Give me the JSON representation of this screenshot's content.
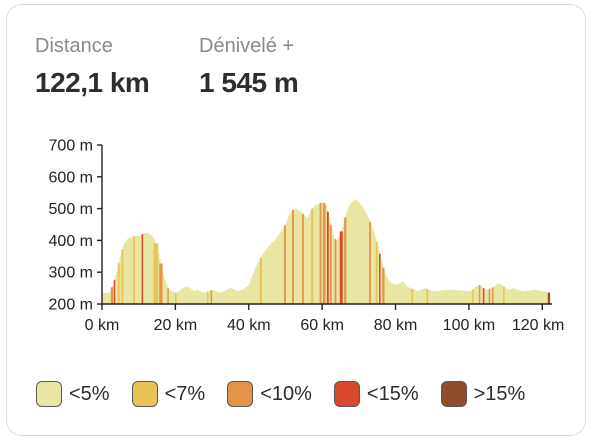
{
  "stats": {
    "distance_label": "Distance",
    "distance_value": "122,1 km",
    "elevation_label": "Dénivelé +",
    "elevation_value": "1 545 m"
  },
  "chart_data": {
    "type": "area",
    "title": "",
    "xlabel": "",
    "ylabel": "",
    "xlim": [
      0,
      122.1
    ],
    "ylim": [
      200,
      700
    ],
    "x_ticks": [
      0,
      20,
      40,
      60,
      80,
      100,
      120
    ],
    "x_tick_labels": [
      "0 km",
      "20 km",
      "40 km",
      "60 km",
      "80 km",
      "100 km",
      "120 km"
    ],
    "y_ticks": [
      200,
      300,
      400,
      500,
      600,
      700
    ],
    "y_tick_labels": [
      "200 m",
      "300 m",
      "400 m",
      "500 m",
      "600 m",
      "700 m"
    ],
    "grid": false,
    "x": [
      0,
      2,
      3,
      4,
      5,
      6,
      7,
      8,
      9,
      10,
      11,
      12,
      13,
      14,
      15,
      16,
      17,
      18,
      19,
      20,
      21,
      22,
      23,
      24,
      25,
      26,
      27,
      28,
      29,
      30,
      31,
      32,
      33,
      34,
      35,
      36,
      37,
      38,
      39,
      40,
      41,
      42,
      43,
      44,
      45,
      46,
      47,
      48,
      49,
      50,
      51,
      52,
      53,
      54,
      55,
      56,
      57,
      58,
      59,
      60,
      61,
      62,
      63,
      64,
      65,
      66,
      67,
      68,
      69,
      70,
      71,
      72,
      73,
      74,
      75,
      76,
      77,
      78,
      79,
      80,
      81,
      82,
      83,
      84,
      85,
      86,
      87,
      88,
      89,
      90,
      95,
      100,
      101,
      102,
      103,
      104,
      105,
      106,
      107,
      108,
      109,
      110,
      111,
      112,
      113,
      115,
      118,
      120,
      122.1
    ],
    "y": [
      235,
      235,
      260,
      300,
      350,
      390,
      405,
      410,
      415,
      412,
      420,
      425,
      420,
      410,
      380,
      330,
      280,
      250,
      240,
      235,
      240,
      250,
      255,
      250,
      240,
      245,
      238,
      235,
      240,
      245,
      240,
      235,
      238,
      245,
      250,
      245,
      240,
      245,
      250,
      260,
      290,
      320,
      340,
      360,
      375,
      390,
      400,
      415,
      430,
      450,
      480,
      495,
      500,
      490,
      480,
      470,
      495,
      510,
      515,
      520,
      515,
      470,
      410,
      400,
      420,
      460,
      500,
      520,
      530,
      520,
      505,
      485,
      460,
      430,
      390,
      345,
      300,
      275,
      265,
      260,
      265,
      270,
      255,
      250,
      245,
      240,
      245,
      250,
      245,
      240,
      245,
      240,
      245,
      255,
      260,
      250,
      245,
      250,
      255,
      265,
      260,
      250,
      245,
      250,
      245,
      240,
      245,
      240,
      235
    ],
    "gradient_categories": [
      "<5%",
      "<7%",
      "<10%",
      "<15%",
      ">15%"
    ],
    "series_colors": {
      "<5%": "#e9e6a4",
      "<7%": "#e8c357",
      "<10%": "#e4934a",
      "<15%": "#d9472f",
      ">15%": "#8f4c2a"
    },
    "steep_segments": [
      {
        "from": 2.4,
        "to": 3.0,
        "category": "<10%"
      },
      {
        "from": 3.2,
        "to": 3.6,
        "category": "<15%"
      },
      {
        "from": 4.3,
        "to": 4.8,
        "category": "<7%"
      },
      {
        "from": 5.3,
        "to": 5.8,
        "category": "<7%"
      },
      {
        "from": 8.5,
        "to": 9.0,
        "category": "<7%"
      },
      {
        "from": 10.8,
        "to": 11.2,
        "category": "<15%"
      },
      {
        "from": 14.0,
        "to": 15.3,
        "category": "<7%"
      },
      {
        "from": 15.6,
        "to": 16.5,
        "category": "<10%"
      },
      {
        "from": 17.8,
        "to": 18.2,
        "category": "<10%"
      },
      {
        "from": 19.9,
        "to": 20.3,
        "category": "<7%"
      },
      {
        "from": 28.6,
        "to": 29.0,
        "category": "<7%"
      },
      {
        "from": 29.6,
        "to": 29.9,
        "category": "<10%"
      },
      {
        "from": 43.0,
        "to": 43.6,
        "category": "<7%"
      },
      {
        "from": 49.6,
        "to": 50.1,
        "category": "<10%"
      },
      {
        "from": 51.8,
        "to": 52.3,
        "category": "<10%"
      },
      {
        "from": 54.5,
        "to": 55.0,
        "category": "<10%"
      },
      {
        "from": 57.0,
        "to": 57.6,
        "category": "<7%"
      },
      {
        "from": 59.3,
        "to": 59.8,
        "category": "<10%"
      },
      {
        "from": 60.2,
        "to": 60.9,
        "category": "<10%"
      },
      {
        "from": 61.3,
        "to": 61.8,
        "category": "<15%"
      },
      {
        "from": 62.1,
        "to": 62.6,
        "category": "<10%"
      },
      {
        "from": 63.4,
        "to": 63.9,
        "category": "<10%"
      },
      {
        "from": 64.8,
        "to": 65.6,
        "category": "<15%"
      },
      {
        "from": 66.0,
        "to": 66.6,
        "category": "<10%"
      },
      {
        "from": 72.8,
        "to": 73.3,
        "category": "<10%"
      },
      {
        "from": 74.6,
        "to": 75.1,
        "category": "<7%"
      },
      {
        "from": 75.5,
        "to": 75.9,
        "category": "<15%"
      },
      {
        "from": 76.4,
        "to": 77.0,
        "category": "<10%"
      },
      {
        "from": 84.3,
        "to": 84.8,
        "category": "<7%"
      },
      {
        "from": 88.4,
        "to": 88.9,
        "category": "<7%"
      },
      {
        "from": 100.9,
        "to": 101.3,
        "category": "<7%"
      },
      {
        "from": 102.7,
        "to": 103.1,
        "category": "<10%"
      },
      {
        "from": 103.8,
        "to": 104.2,
        "category": "<15%"
      },
      {
        "from": 105.4,
        "to": 105.8,
        "category": "<10%"
      },
      {
        "from": 106.3,
        "to": 106.7,
        "category": "<10%"
      },
      {
        "from": 109.3,
        "to": 109.7,
        "category": "<7%"
      },
      {
        "from": 121.5,
        "to": 122.1,
        "category": ">15%"
      }
    ]
  },
  "legend": {
    "items": [
      {
        "label": "<5%",
        "color": "#e9e6a4"
      },
      {
        "label": "<7%",
        "color": "#e8c357"
      },
      {
        "label": "<10%",
        "color": "#e4934a"
      },
      {
        "label": "<15%",
        "color": "#d9472f"
      },
      {
        "label": ">15%",
        "color": "#8f4c2a"
      }
    ]
  }
}
